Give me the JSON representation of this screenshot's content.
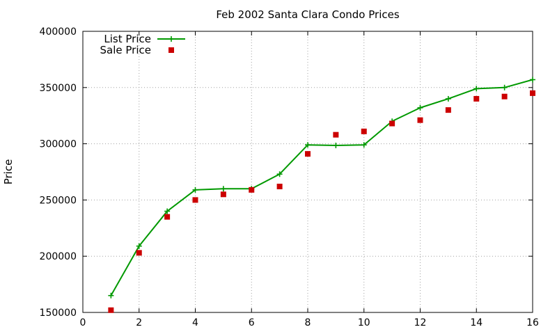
{
  "chart_data": {
    "type": "line",
    "title": "Feb 2002 Santa Clara Condo Prices",
    "xlabel": "",
    "ylabel": "Price",
    "xlim": [
      0,
      16
    ],
    "ylim": [
      150000,
      400000
    ],
    "x_ticks": [
      0,
      2,
      4,
      6,
      8,
      10,
      12,
      14,
      16
    ],
    "y_ticks": [
      150000,
      200000,
      250000,
      300000,
      350000,
      400000
    ],
    "grid": true,
    "legend_position": "top-left",
    "series": [
      {
        "name": "List Price",
        "style": "linespoints",
        "marker": "plus",
        "color": "#009900",
        "x": [
          1,
          2,
          3,
          4,
          5,
          6,
          7,
          8,
          9,
          10,
          11,
          12,
          13,
          14,
          15,
          16
        ],
        "y": [
          165000,
          209000,
          240000,
          259000,
          260000,
          260000,
          273000,
          299000,
          298500,
          299000,
          320000,
          332000,
          340000,
          349000,
          350000,
          357000
        ]
      },
      {
        "name": "Sale Price",
        "style": "points",
        "marker": "square",
        "color": "#cc0000",
        "x": [
          1,
          2,
          3,
          4,
          5,
          6,
          7,
          8,
          9,
          10,
          11,
          12,
          13,
          14,
          15,
          16
        ],
        "y": [
          152000,
          203000,
          235000,
          250000,
          255000,
          259000,
          262000,
          291000,
          308000,
          311000,
          318000,
          321000,
          330000,
          340000,
          342000,
          345000
        ]
      }
    ]
  }
}
